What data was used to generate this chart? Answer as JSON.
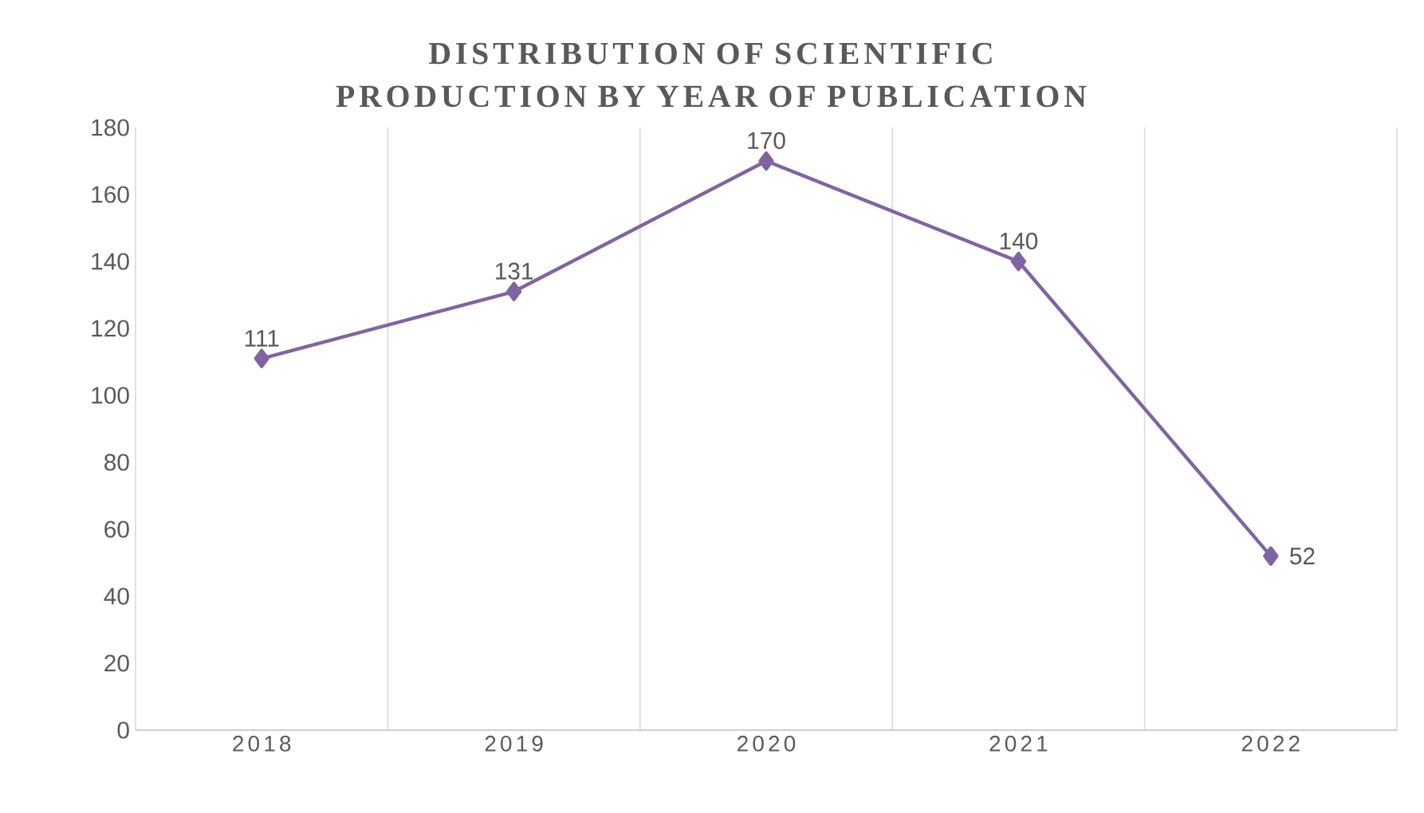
{
  "chart_data": {
    "type": "line",
    "title": "DISTRIBUTION OF SCIENTIFIC PRODUCTION BY YEAR OF PUBLICATION",
    "categories": [
      "2018",
      "2019",
      "2020",
      "2021",
      "2022"
    ],
    "series": [
      {
        "color": "#8064a2",
        "values": [
          111,
          131,
          170,
          140,
          52
        ]
      }
    ],
    "ylim": [
      0,
      180
    ],
    "yticks": [
      0,
      20,
      40,
      60,
      80,
      100,
      120,
      140,
      160,
      180
    ],
    "grid": "x",
    "marker": "diamond",
    "line_style": "solid",
    "data_labels": true
  }
}
